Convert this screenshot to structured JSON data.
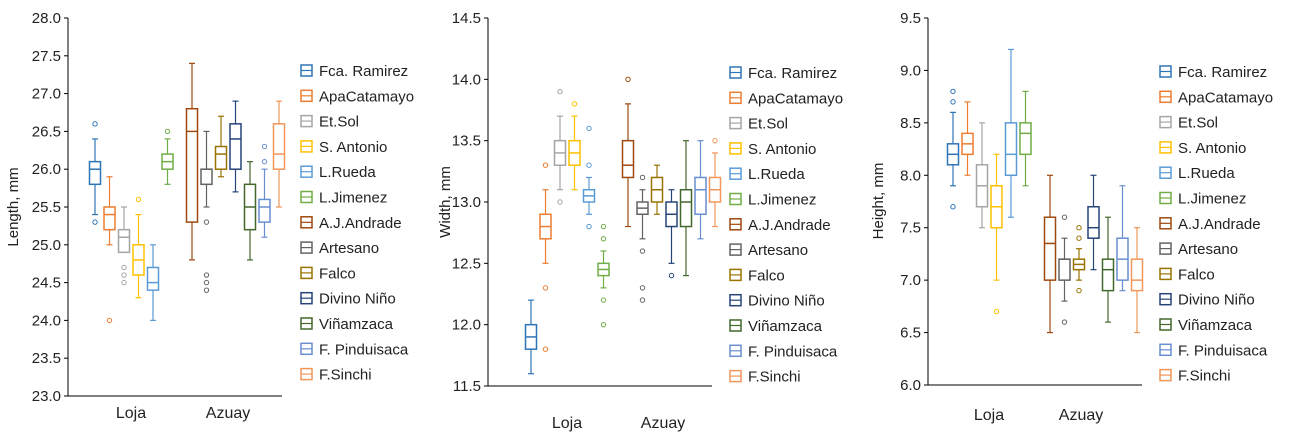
{
  "colors": [
    "#2e75b6",
    "#ed7d31",
    "#a5a5a5",
    "#ffc000",
    "#5b9bd5",
    "#70ad47",
    "#9e480e",
    "#636363",
    "#997300",
    "#264478",
    "#43682b",
    "#698ed0",
    "#f1975a"
  ],
  "chart_data": [
    {
      "type": "box",
      "ylabel": "Length, mm",
      "ylim": [
        23.0,
        28.0
      ],
      "yticks": [
        "23.0",
        "23.5",
        "24.0",
        "24.5",
        "25.0",
        "25.5",
        "26.0",
        "26.5",
        "27.0",
        "27.5",
        "28.0"
      ],
      "groups": [
        "Loja",
        "Azuay"
      ],
      "legend": [
        "Fca. Ramirez",
        "ApaCatamayo",
        "Et.Sol",
        "S. Antonio",
        "L.Rueda",
        "L.Jimenez",
        "A.J.Andrade",
        "Artesano",
        "Falco",
        "Divino Niño",
        "Viñamzaca",
        "F. Pinduisaca",
        "F.Sinchi"
      ],
      "series": [
        {
          "name": "Fca. Ramirez",
          "group": "Loja",
          "min": 25.4,
          "q1": 25.8,
          "median": 26.0,
          "q3": 26.1,
          "max": 26.4,
          "outliers": [
            26.6,
            25.3
          ]
        },
        {
          "name": "ApaCatamayo",
          "group": "Loja",
          "min": 25.0,
          "q1": 25.2,
          "median": 25.4,
          "q3": 25.5,
          "max": 25.9,
          "outliers": [
            24.0
          ]
        },
        {
          "name": "Et.Sol",
          "group": "Loja",
          "min": 24.9,
          "q1": 24.9,
          "median": 25.1,
          "q3": 25.2,
          "max": 25.5,
          "outliers": [
            24.7,
            24.6,
            24.5
          ]
        },
        {
          "name": "S. Antonio",
          "group": "Loja",
          "min": 24.3,
          "q1": 24.6,
          "median": 24.8,
          "q3": 25.0,
          "max": 25.4,
          "outliers": [
            25.6
          ]
        },
        {
          "name": "L.Rueda",
          "group": "Loja",
          "min": 24.0,
          "q1": 24.4,
          "median": 24.5,
          "q3": 24.7,
          "max": 25.0,
          "outliers": []
        },
        {
          "name": "L.Jimenez",
          "group": "Loja",
          "min": 25.8,
          "q1": 26.0,
          "median": 26.1,
          "q3": 26.2,
          "max": 26.4,
          "outliers": [
            26.5
          ]
        },
        {
          "name": "A.J.Andrade",
          "group": "Azuay",
          "min": 24.8,
          "q1": 25.3,
          "median": 26.5,
          "q3": 26.8,
          "max": 27.4,
          "outliers": []
        },
        {
          "name": "Artesano",
          "group": "Azuay",
          "min": 25.5,
          "q1": 25.8,
          "median": 26.0,
          "q3": 26.0,
          "max": 26.5,
          "outliers": [
            25.3,
            24.6,
            24.5,
            24.4
          ]
        },
        {
          "name": "Falco",
          "group": "Azuay",
          "min": 25.9,
          "q1": 26.0,
          "median": 26.2,
          "q3": 26.3,
          "max": 26.7,
          "outliers": []
        },
        {
          "name": "Divino Niño",
          "group": "Azuay",
          "min": 25.7,
          "q1": 26.0,
          "median": 26.4,
          "q3": 26.6,
          "max": 26.9,
          "outliers": []
        },
        {
          "name": "Viñamzaca",
          "group": "Azuay",
          "min": 24.8,
          "q1": 25.2,
          "median": 25.5,
          "q3": 25.8,
          "max": 26.1,
          "outliers": []
        },
        {
          "name": "F. Pinduisaca",
          "group": "Azuay",
          "min": 25.1,
          "q1": 25.3,
          "median": 25.5,
          "q3": 25.6,
          "max": 26.0,
          "outliers": [
            26.3,
            26.1
          ]
        },
        {
          "name": "F.Sinchi",
          "group": "Azuay",
          "min": 25.5,
          "q1": 26.0,
          "median": 26.2,
          "q3": 26.6,
          "max": 26.9,
          "outliers": []
        }
      ]
    },
    {
      "type": "box",
      "ylabel": "Width, mm",
      "ylim": [
        11.5,
        14.5
      ],
      "yticks": [
        "11.5",
        "12.0",
        "12.5",
        "13.0",
        "13.5",
        "14.0",
        "14.5"
      ],
      "groups": [
        "Loja",
        "Azuay"
      ],
      "legend": [
        "Fca. Ramirez",
        "ApaCatamayo",
        "Et.Sol",
        "S. Antonio",
        "L.Rueda",
        "L.Jimenez",
        "A.J.Andrade",
        "Artesano",
        "Falco",
        "Divino Niño",
        "Viñamzaca",
        "F. Pinduisaca",
        "F.Sinchi"
      ],
      "series": [
        {
          "name": "Fca. Ramirez",
          "group": "Loja",
          "min": 11.6,
          "q1": 11.8,
          "median": 11.9,
          "q3": 12.0,
          "max": 12.2,
          "outliers": []
        },
        {
          "name": "ApaCatamayo",
          "group": "Loja",
          "min": 12.5,
          "q1": 12.7,
          "median": 12.8,
          "q3": 12.9,
          "max": 13.1,
          "outliers": [
            13.3,
            12.3,
            11.8
          ]
        },
        {
          "name": "Et.Sol",
          "group": "Loja",
          "min": 13.1,
          "q1": 13.3,
          "median": 13.4,
          "q3": 13.5,
          "max": 13.7,
          "outliers": [
            13.9,
            13.0
          ]
        },
        {
          "name": "S. Antonio",
          "group": "Loja",
          "min": 13.1,
          "q1": 13.3,
          "median": 13.4,
          "q3": 13.5,
          "max": 13.7,
          "outliers": [
            13.8
          ]
        },
        {
          "name": "L.Rueda",
          "group": "Loja",
          "min": 12.9,
          "q1": 13.0,
          "median": 13.05,
          "q3": 13.1,
          "max": 13.2,
          "outliers": [
            13.6,
            13.3,
            12.8
          ]
        },
        {
          "name": "L.Jimenez",
          "group": "Loja",
          "min": 12.3,
          "q1": 12.4,
          "median": 12.45,
          "q3": 12.5,
          "max": 12.6,
          "outliers": [
            12.8,
            12.7,
            12.2,
            12.0
          ]
        },
        {
          "name": "A.J.Andrade",
          "group": "Azuay",
          "min": 12.8,
          "q1": 13.2,
          "median": 13.3,
          "q3": 13.5,
          "max": 13.8,
          "outliers": [
            14.0
          ]
        },
        {
          "name": "Artesano",
          "group": "Azuay",
          "min": 12.7,
          "q1": 12.9,
          "median": 12.95,
          "q3": 13.0,
          "max": 13.1,
          "outliers": [
            13.2,
            12.6,
            12.3,
            12.2
          ]
        },
        {
          "name": "Falco",
          "group": "Azuay",
          "min": 12.9,
          "q1": 13.0,
          "median": 13.1,
          "q3": 13.2,
          "max": 13.3,
          "outliers": []
        },
        {
          "name": "Divino Niño",
          "group": "Azuay",
          "min": 12.5,
          "q1": 12.8,
          "median": 12.9,
          "q3": 13.0,
          "max": 13.1,
          "outliers": [
            12.4
          ]
        },
        {
          "name": "Viñamzaca",
          "group": "Azuay",
          "min": 12.4,
          "q1": 12.8,
          "median": 13.0,
          "q3": 13.1,
          "max": 13.5,
          "outliers": []
        },
        {
          "name": "F. Pinduisaca",
          "group": "Azuay",
          "min": 12.7,
          "q1": 12.9,
          "median": 13.1,
          "q3": 13.2,
          "max": 13.5,
          "outliers": []
        },
        {
          "name": "F.Sinchi",
          "group": "Azuay",
          "min": 12.8,
          "q1": 13.0,
          "median": 13.1,
          "q3": 13.2,
          "max": 13.4,
          "outliers": [
            13.5
          ]
        }
      ]
    },
    {
      "type": "box",
      "ylabel": "Height, mm",
      "ylim": [
        6.0,
        9.5
      ],
      "yticks": [
        "6.0",
        "6.5",
        "7.0",
        "7.5",
        "8.0",
        "8.5",
        "9.0",
        "9.5"
      ],
      "groups": [
        "Loja",
        "Azuay"
      ],
      "legend": [
        "Fca. Ramirez",
        "ApaCatamayo",
        "Et.Sol",
        "S. Antonio",
        "L.Rueda",
        "L.Jimenez",
        "A.J.Andrade",
        "Artesano",
        "Falco",
        "Divino Niño",
        "Viñamzaca",
        "F. Pinduisaca",
        "F.Sinchi"
      ],
      "series": [
        {
          "name": "Fca. Ramirez",
          "group": "Loja",
          "min": 7.9,
          "q1": 8.1,
          "median": 8.2,
          "q3": 8.3,
          "max": 8.6,
          "outliers": [
            8.8,
            8.7,
            7.7
          ]
        },
        {
          "name": "ApaCatamayo",
          "group": "Loja",
          "min": 8.0,
          "q1": 8.2,
          "median": 8.3,
          "q3": 8.4,
          "max": 8.7,
          "outliers": []
        },
        {
          "name": "Et.Sol",
          "group": "Loja",
          "min": 7.5,
          "q1": 7.7,
          "median": 7.9,
          "q3": 8.1,
          "max": 8.5,
          "outliers": []
        },
        {
          "name": "S. Antonio",
          "group": "Loja",
          "min": 7.0,
          "q1": 7.5,
          "median": 7.7,
          "q3": 7.9,
          "max": 8.2,
          "outliers": [
            6.7
          ]
        },
        {
          "name": "L.Rueda",
          "group": "Loja",
          "min": 7.6,
          "q1": 8.0,
          "median": 8.2,
          "q3": 8.5,
          "max": 9.2,
          "outliers": []
        },
        {
          "name": "L.Jimenez",
          "group": "Loja",
          "min": 7.9,
          "q1": 8.2,
          "median": 8.4,
          "q3": 8.5,
          "max": 8.8,
          "outliers": []
        },
        {
          "name": "A.J.Andrade",
          "group": "Azuay",
          "min": 6.5,
          "q1": 7.0,
          "median": 7.35,
          "q3": 7.6,
          "max": 8.0,
          "outliers": []
        },
        {
          "name": "Artesano",
          "group": "Azuay",
          "min": 6.8,
          "q1": 7.0,
          "median": 7.2,
          "q3": 7.2,
          "max": 7.4,
          "outliers": [
            7.6,
            6.6
          ]
        },
        {
          "name": "Falco",
          "group": "Azuay",
          "min": 7.0,
          "q1": 7.1,
          "median": 7.15,
          "q3": 7.2,
          "max": 7.3,
          "outliers": [
            7.5,
            7.4,
            6.9
          ]
        },
        {
          "name": "Divino Niño",
          "group": "Azuay",
          "min": 7.1,
          "q1": 7.4,
          "median": 7.5,
          "q3": 7.7,
          "max": 8.0,
          "outliers": []
        },
        {
          "name": "Viñamzaca",
          "group": "Azuay",
          "min": 6.6,
          "q1": 6.9,
          "median": 7.1,
          "q3": 7.2,
          "max": 7.6,
          "outliers": []
        },
        {
          "name": "F. Pinduisaca",
          "group": "Azuay",
          "min": 6.9,
          "q1": 7.0,
          "median": 7.2,
          "q3": 7.4,
          "max": 7.9,
          "outliers": []
        },
        {
          "name": "F.Sinchi",
          "group": "Azuay",
          "min": 6.5,
          "q1": 6.9,
          "median": 7.0,
          "q3": 7.2,
          "max": 7.5,
          "outliers": []
        }
      ]
    }
  ]
}
